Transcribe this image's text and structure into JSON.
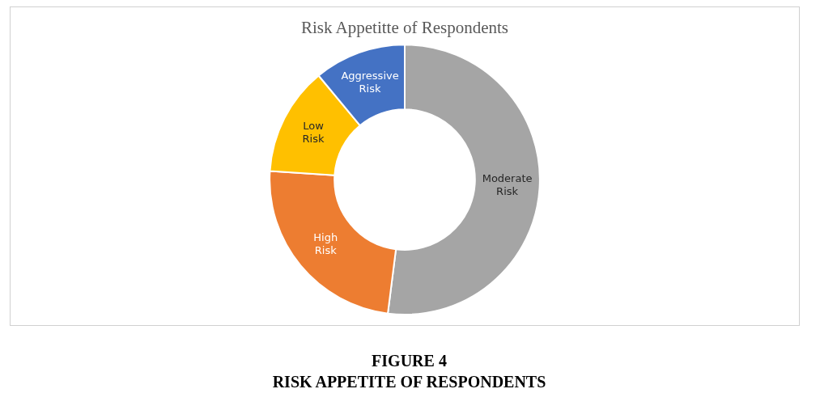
{
  "chart_data": {
    "type": "donut",
    "title": "Risk Appetitte of Respondents",
    "categories": [
      "Moderate Risk",
      "High Risk",
      "Low Risk",
      "Aggressive Risk"
    ],
    "values": [
      52,
      24,
      13,
      11
    ],
    "colors": [
      "#a5a5a5",
      "#ed7d31",
      "#ffc000",
      "#4472c4"
    ],
    "legend": false,
    "annotations": [
      "FIGURE 4",
      "RISK APPETITE OF RESPONDENTS"
    ]
  }
}
